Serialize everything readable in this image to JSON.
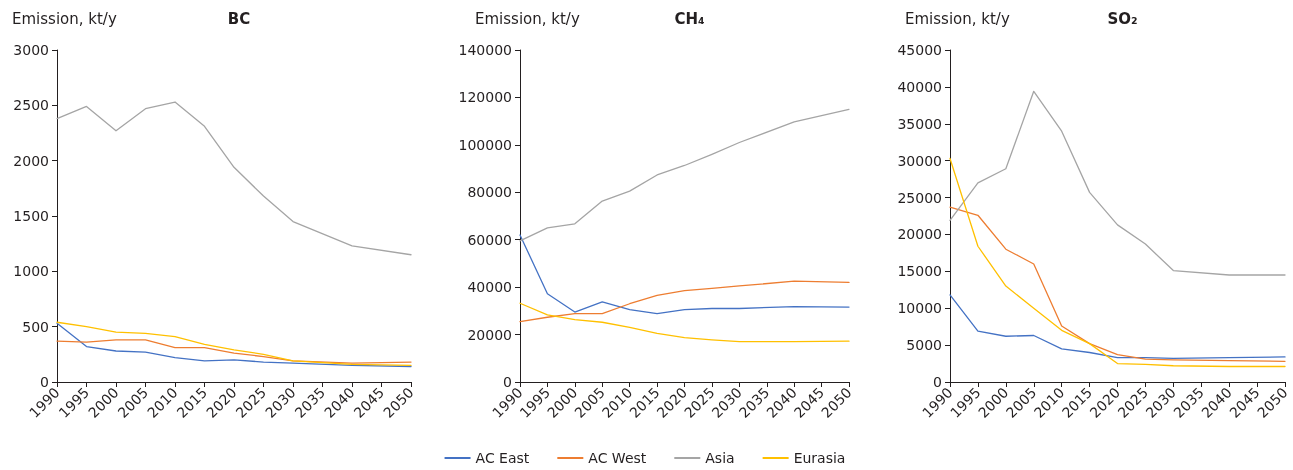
{
  "chart_data": [
    {
      "type": "line",
      "title": "BC",
      "ylabel": "Emission, kt/y",
      "marker": "none",
      "grid": false,
      "legend": false,
      "x": [
        1990,
        1995,
        2000,
        2005,
        2010,
        2015,
        2020,
        2025,
        2030,
        2040,
        2050
      ],
      "xlim": [
        1990,
        2050
      ],
      "xticks": [
        1990,
        1995,
        2000,
        2005,
        2010,
        2015,
        2020,
        2025,
        2030,
        2035,
        2040,
        2045,
        2050
      ],
      "ylim": [
        0,
        3000
      ],
      "yticks": [
        0,
        500,
        1000,
        1500,
        2000,
        2500,
        3000
      ],
      "series": [
        {
          "color": "#4472c4",
          "values": [
            530,
            320,
            280,
            270,
            220,
            190,
            200,
            180,
            170,
            150,
            140
          ]
        },
        {
          "color": "#ed7d31",
          "values": [
            370,
            360,
            380,
            380,
            310,
            310,
            260,
            230,
            190,
            170,
            180
          ]
        },
        {
          "color": "#a5a5a5",
          "values": [
            2380,
            2490,
            2270,
            2470,
            2530,
            2310,
            1940,
            1680,
            1450,
            1230,
            1150
          ]
        },
        {
          "color": "#ffc000",
          "values": [
            540,
            500,
            450,
            440,
            410,
            340,
            290,
            250,
            190,
            160,
            150
          ]
        }
      ]
    },
    {
      "type": "line",
      "title": "CH₄",
      "ylabel": "Emission, kt/y",
      "marker": "none",
      "grid": false,
      "legend": "bottom",
      "x": [
        1990,
        1995,
        2000,
        2005,
        2010,
        2015,
        2020,
        2025,
        2030,
        2040,
        2050
      ],
      "xlim": [
        1990,
        2050
      ],
      "xticks": [
        1990,
        1995,
        2000,
        2005,
        2010,
        2015,
        2020,
        2025,
        2030,
        2035,
        2040,
        2045,
        2050
      ],
      "ylim": [
        0,
        140000
      ],
      "yticks": [
        0,
        20000,
        40000,
        60000,
        80000,
        100000,
        120000,
        140000
      ],
      "series": [
        {
          "name": "AC East",
          "color": "#4472c4",
          "values": [
            62000,
            37200,
            29500,
            33800,
            30500,
            28800,
            30500,
            31000,
            31000,
            31800,
            31600
          ]
        },
        {
          "name": "AC West",
          "color": "#ed7d31",
          "values": [
            25500,
            27300,
            28800,
            28800,
            33000,
            36500,
            38500,
            39500,
            40500,
            42500,
            42000
          ]
        },
        {
          "name": "Asia",
          "color": "#a5a5a5",
          "values": [
            59500,
            65000,
            66700,
            76300,
            80500,
            87300,
            91300,
            96000,
            101000,
            109700,
            115000
          ]
        },
        {
          "name": "Eurasia",
          "color": "#ffc000",
          "values": [
            33200,
            28300,
            26300,
            25200,
            23000,
            20500,
            18700,
            17800,
            17000,
            17000,
            17200
          ]
        }
      ]
    },
    {
      "type": "line",
      "title": "SO₂",
      "ylabel": "Emission, kt/y",
      "marker": "none",
      "grid": false,
      "legend": false,
      "x": [
        1990,
        1995,
        2000,
        2005,
        2010,
        2015,
        2020,
        2025,
        2030,
        2040,
        2050
      ],
      "xlim": [
        1990,
        2050
      ],
      "xticks": [
        1990,
        1995,
        2000,
        2005,
        2010,
        2015,
        2020,
        2025,
        2030,
        2035,
        2040,
        2045,
        2050
      ],
      "ylim": [
        0,
        45000
      ],
      "yticks": [
        0,
        5000,
        10000,
        15000,
        20000,
        25000,
        30000,
        35000,
        40000,
        45000
      ],
      "series": [
        {
          "color": "#4472c4",
          "values": [
            11800,
            6900,
            6200,
            6300,
            4500,
            4000,
            3300,
            3300,
            3200,
            3300,
            3400
          ]
        },
        {
          "color": "#ed7d31",
          "values": [
            23700,
            22600,
            18000,
            16000,
            7600,
            5200,
            3700,
            3100,
            3000,
            2900,
            2800
          ]
        },
        {
          "color": "#a5a5a5",
          "values": [
            21900,
            27000,
            28900,
            39400,
            34000,
            25700,
            21300,
            18700,
            15100,
            14500,
            14500
          ]
        },
        {
          "color": "#ffc000",
          "values": [
            30300,
            18400,
            13000,
            10000,
            7000,
            5200,
            2500,
            2400,
            2200,
            2100,
            2100
          ]
        }
      ]
    }
  ]
}
